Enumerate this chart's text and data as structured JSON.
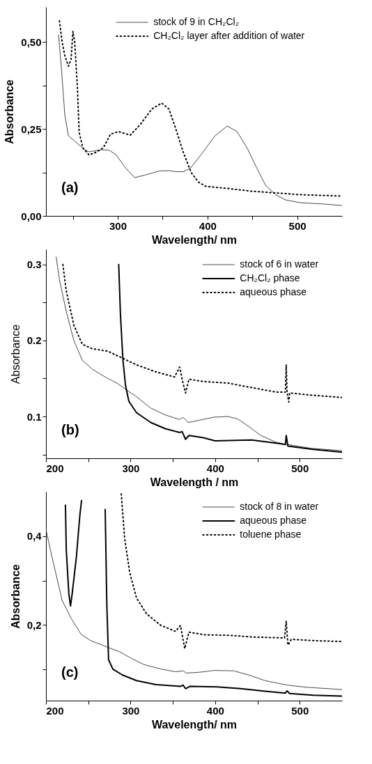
{
  "chart_data": [
    {
      "type": "line",
      "xlabel": "Wavelength/ nm",
      "ylabel": "Absorbance",
      "xlim": [
        220,
        550
      ],
      "ylim": [
        0,
        0.6
      ],
      "xticks": [
        {
          "value": 250,
          "label": null
        },
        300,
        {
          "value": 350,
          "label": null
        },
        400,
        {
          "value": 450,
          "label": null
        },
        500
      ],
      "yticks": [
        {
          "value": 0,
          "label": "0,00"
        },
        {
          "value": 0.125,
          "label": null
        },
        {
          "value": 0.25,
          "label": "0,25"
        },
        {
          "value": 0.375,
          "label": null
        },
        {
          "value": 0.5,
          "label": "0,50"
        }
      ],
      "legend": "top right",
      "annotations": [
        "(a)"
      ],
      "series": [
        {
          "name": "stock of 9 in CH₂Cl₂",
          "color": "#333333",
          "line_style": "solid",
          "x": [
            234,
            237,
            241,
            245,
            252,
            263,
            268,
            282,
            290,
            298,
            309,
            319,
            330,
            346,
            357,
            365,
            373,
            381,
            395,
            408,
            422,
            433,
            444,
            455,
            465,
            476,
            487,
            503,
            530,
            550
          ],
          "values": [
            0.52,
            0.43,
            0.29,
            0.23,
            0.215,
            0.19,
            0.184,
            0.19,
            0.189,
            0.176,
            0.137,
            0.11,
            0.117,
            0.129,
            0.13,
            0.127,
            0.127,
            0.137,
            0.183,
            0.229,
            0.258,
            0.242,
            0.196,
            0.137,
            0.087,
            0.061,
            0.046,
            0.038,
            0.034,
            0.03
          ]
        },
        {
          "name": "CH₂Cl₂ layer after addition of water",
          "color": "#000000",
          "line_style": "dotted",
          "x": [
            235,
            238,
            241,
            245,
            248,
            250,
            252,
            255,
            257,
            261,
            268,
            276,
            284,
            292,
            301,
            314,
            325,
            338,
            349,
            357,
            365,
            373,
            382,
            390,
            398,
            422,
            449,
            476,
            503,
            550
          ],
          "values": [
            0.56,
            0.5,
            0.46,
            0.43,
            0.45,
            0.53,
            0.5,
            0.37,
            0.24,
            0.196,
            0.175,
            0.183,
            0.196,
            0.235,
            0.242,
            0.232,
            0.262,
            0.307,
            0.324,
            0.307,
            0.248,
            0.183,
            0.124,
            0.097,
            0.085,
            0.079,
            0.071,
            0.066,
            0.061,
            0.057
          ]
        }
      ]
    },
    {
      "type": "line",
      "xlabel": "Wavelength / nm",
      "ylabel": "Absorbance",
      "xlim": [
        200,
        550
      ],
      "ylim": [
        0.045,
        0.32
      ],
      "xticks": [
        200,
        {
          "value": 250,
          "label": null
        },
        300,
        {
          "value": 350,
          "label": null
        },
        400,
        {
          "value": 450,
          "label": null
        },
        500
      ],
      "yticks": [
        {
          "value": 0.05,
          "label": null
        },
        0.1,
        {
          "value": 0.15,
          "label": null
        },
        0.2,
        {
          "value": 0.25,
          "label": null
        },
        0.3
      ],
      "legend": "top right",
      "annotations": [
        "(b)"
      ],
      "series": [
        {
          "name": "stock of 6 in water",
          "color": "#333333",
          "line_style": "solid",
          "x": [
            212,
            216,
            224,
            233,
            243,
            255,
            273,
            284,
            295,
            307,
            324,
            341,
            358,
            362,
            368,
            381,
            398,
            415,
            426,
            437,
            454,
            472,
            486,
            514,
            550
          ],
          "values": [
            0.31,
            0.28,
            0.238,
            0.2,
            0.174,
            0.162,
            0.15,
            0.144,
            0.135,
            0.126,
            0.111,
            0.102,
            0.096,
            0.099,
            0.092,
            0.095,
            0.099,
            0.1,
            0.097,
            0.089,
            0.075,
            0.066,
            0.063,
            0.058,
            0.055
          ]
        },
        {
          "name": "CH₂Cl₂ phase",
          "color": "#000000",
          "line_style": "solid",
          "x": [
            286,
            288,
            291,
            294,
            298,
            307,
            324,
            341,
            358,
            361,
            365,
            369,
            386,
            400,
            443,
            472,
            483,
            484,
            486,
            514,
            550
          ],
          "values": [
            0.3,
            0.235,
            0.174,
            0.141,
            0.12,
            0.105,
            0.092,
            0.084,
            0.079,
            0.08,
            0.07,
            0.075,
            0.072,
            0.068,
            0.069,
            0.065,
            0.063,
            0.075,
            0.061,
            0.057,
            0.053
          ]
        },
        {
          "name": "aqueous phase",
          "color": "#000000",
          "line_style": "dotted",
          "x": [
            220,
            224,
            233,
            243,
            255,
            273,
            290,
            307,
            329,
            352,
            358,
            362,
            365,
            369,
            386,
            415,
            443,
            472,
            483,
            484,
            485,
            487,
            488,
            514,
            550
          ],
          "values": [
            0.3,
            0.265,
            0.22,
            0.195,
            0.189,
            0.186,
            0.177,
            0.168,
            0.159,
            0.152,
            0.165,
            0.144,
            0.131,
            0.149,
            0.146,
            0.144,
            0.138,
            0.132,
            0.132,
            0.168,
            0.132,
            0.119,
            0.131,
            0.128,
            0.125
          ]
        }
      ]
    },
    {
      "type": "line",
      "xlabel": "Wavelength/ nm",
      "ylabel": "Absorbance",
      "xlim": [
        200,
        550
      ],
      "ylim": [
        0.03,
        0.5
      ],
      "xticks": [
        200,
        {
          "value": 250,
          "label": null
        },
        300,
        {
          "value": 350,
          "label": null
        },
        400,
        {
          "value": 450,
          "label": null
        },
        500
      ],
      "yticks": [
        {
          "value": 0.1,
          "label": null
        },
        {
          "value": 0.2,
          "label": "0,2"
        },
        {
          "value": 0.3,
          "label": null
        },
        {
          "value": 0.4,
          "label": "0,4"
        }
      ],
      "legend": "top right",
      "annotations": [
        "(c)"
      ],
      "series": [
        {
          "name": "stock of 8 in water",
          "color": "#333333",
          "line_style": "solid",
          "x": [
            200,
            207,
            219,
            230,
            242,
            253,
            273,
            287,
            302,
            316,
            336,
            353,
            362,
            366,
            382,
            399,
            422,
            439,
            459,
            485,
            508,
            550
          ],
          "values": [
            0.415,
            0.354,
            0.256,
            0.214,
            0.178,
            0.165,
            0.15,
            0.14,
            0.124,
            0.111,
            0.101,
            0.095,
            0.097,
            0.092,
            0.094,
            0.098,
            0.097,
            0.088,
            0.075,
            0.065,
            0.06,
            0.055
          ]
        },
        {
          "name": "aqueous phase",
          "color": "#000000",
          "line_style": "solid",
          "x": [
            223,
            224,
            227,
            229,
            231,
            236,
            240,
            242,
            256,
            270,
            272,
            274,
            279,
            290,
            307,
            330,
            359,
            362,
            365,
            370,
            402,
            430,
            459,
            483,
            485,
            488,
            516,
            550
          ],
          "values": [
            0.47,
            0.369,
            0.271,
            0.243,
            0.271,
            0.354,
            0.446,
            0.48,
            null,
            0.46,
            0.24,
            0.122,
            0.101,
            0.088,
            0.075,
            0.066,
            0.062,
            0.065,
            0.057,
            0.062,
            0.061,
            0.057,
            0.051,
            0.047,
            0.052,
            0.046,
            0.042,
            0.04
          ]
        },
        {
          "name": "toluene phase",
          "color": "#000000",
          "line_style": "dotted",
          "x": [
            289,
            293,
            299,
            307,
            319,
            336,
            353,
            359,
            362,
            364,
            369,
            388,
            416,
            445,
            482,
            484,
            486,
            490,
            516,
            550
          ],
          "values": [
            0.495,
            0.395,
            0.318,
            0.261,
            0.225,
            0.199,
            0.186,
            0.199,
            0.168,
            0.147,
            0.184,
            0.178,
            0.177,
            0.173,
            0.171,
            0.209,
            0.155,
            0.168,
            0.165,
            0.163
          ]
        }
      ]
    }
  ]
}
